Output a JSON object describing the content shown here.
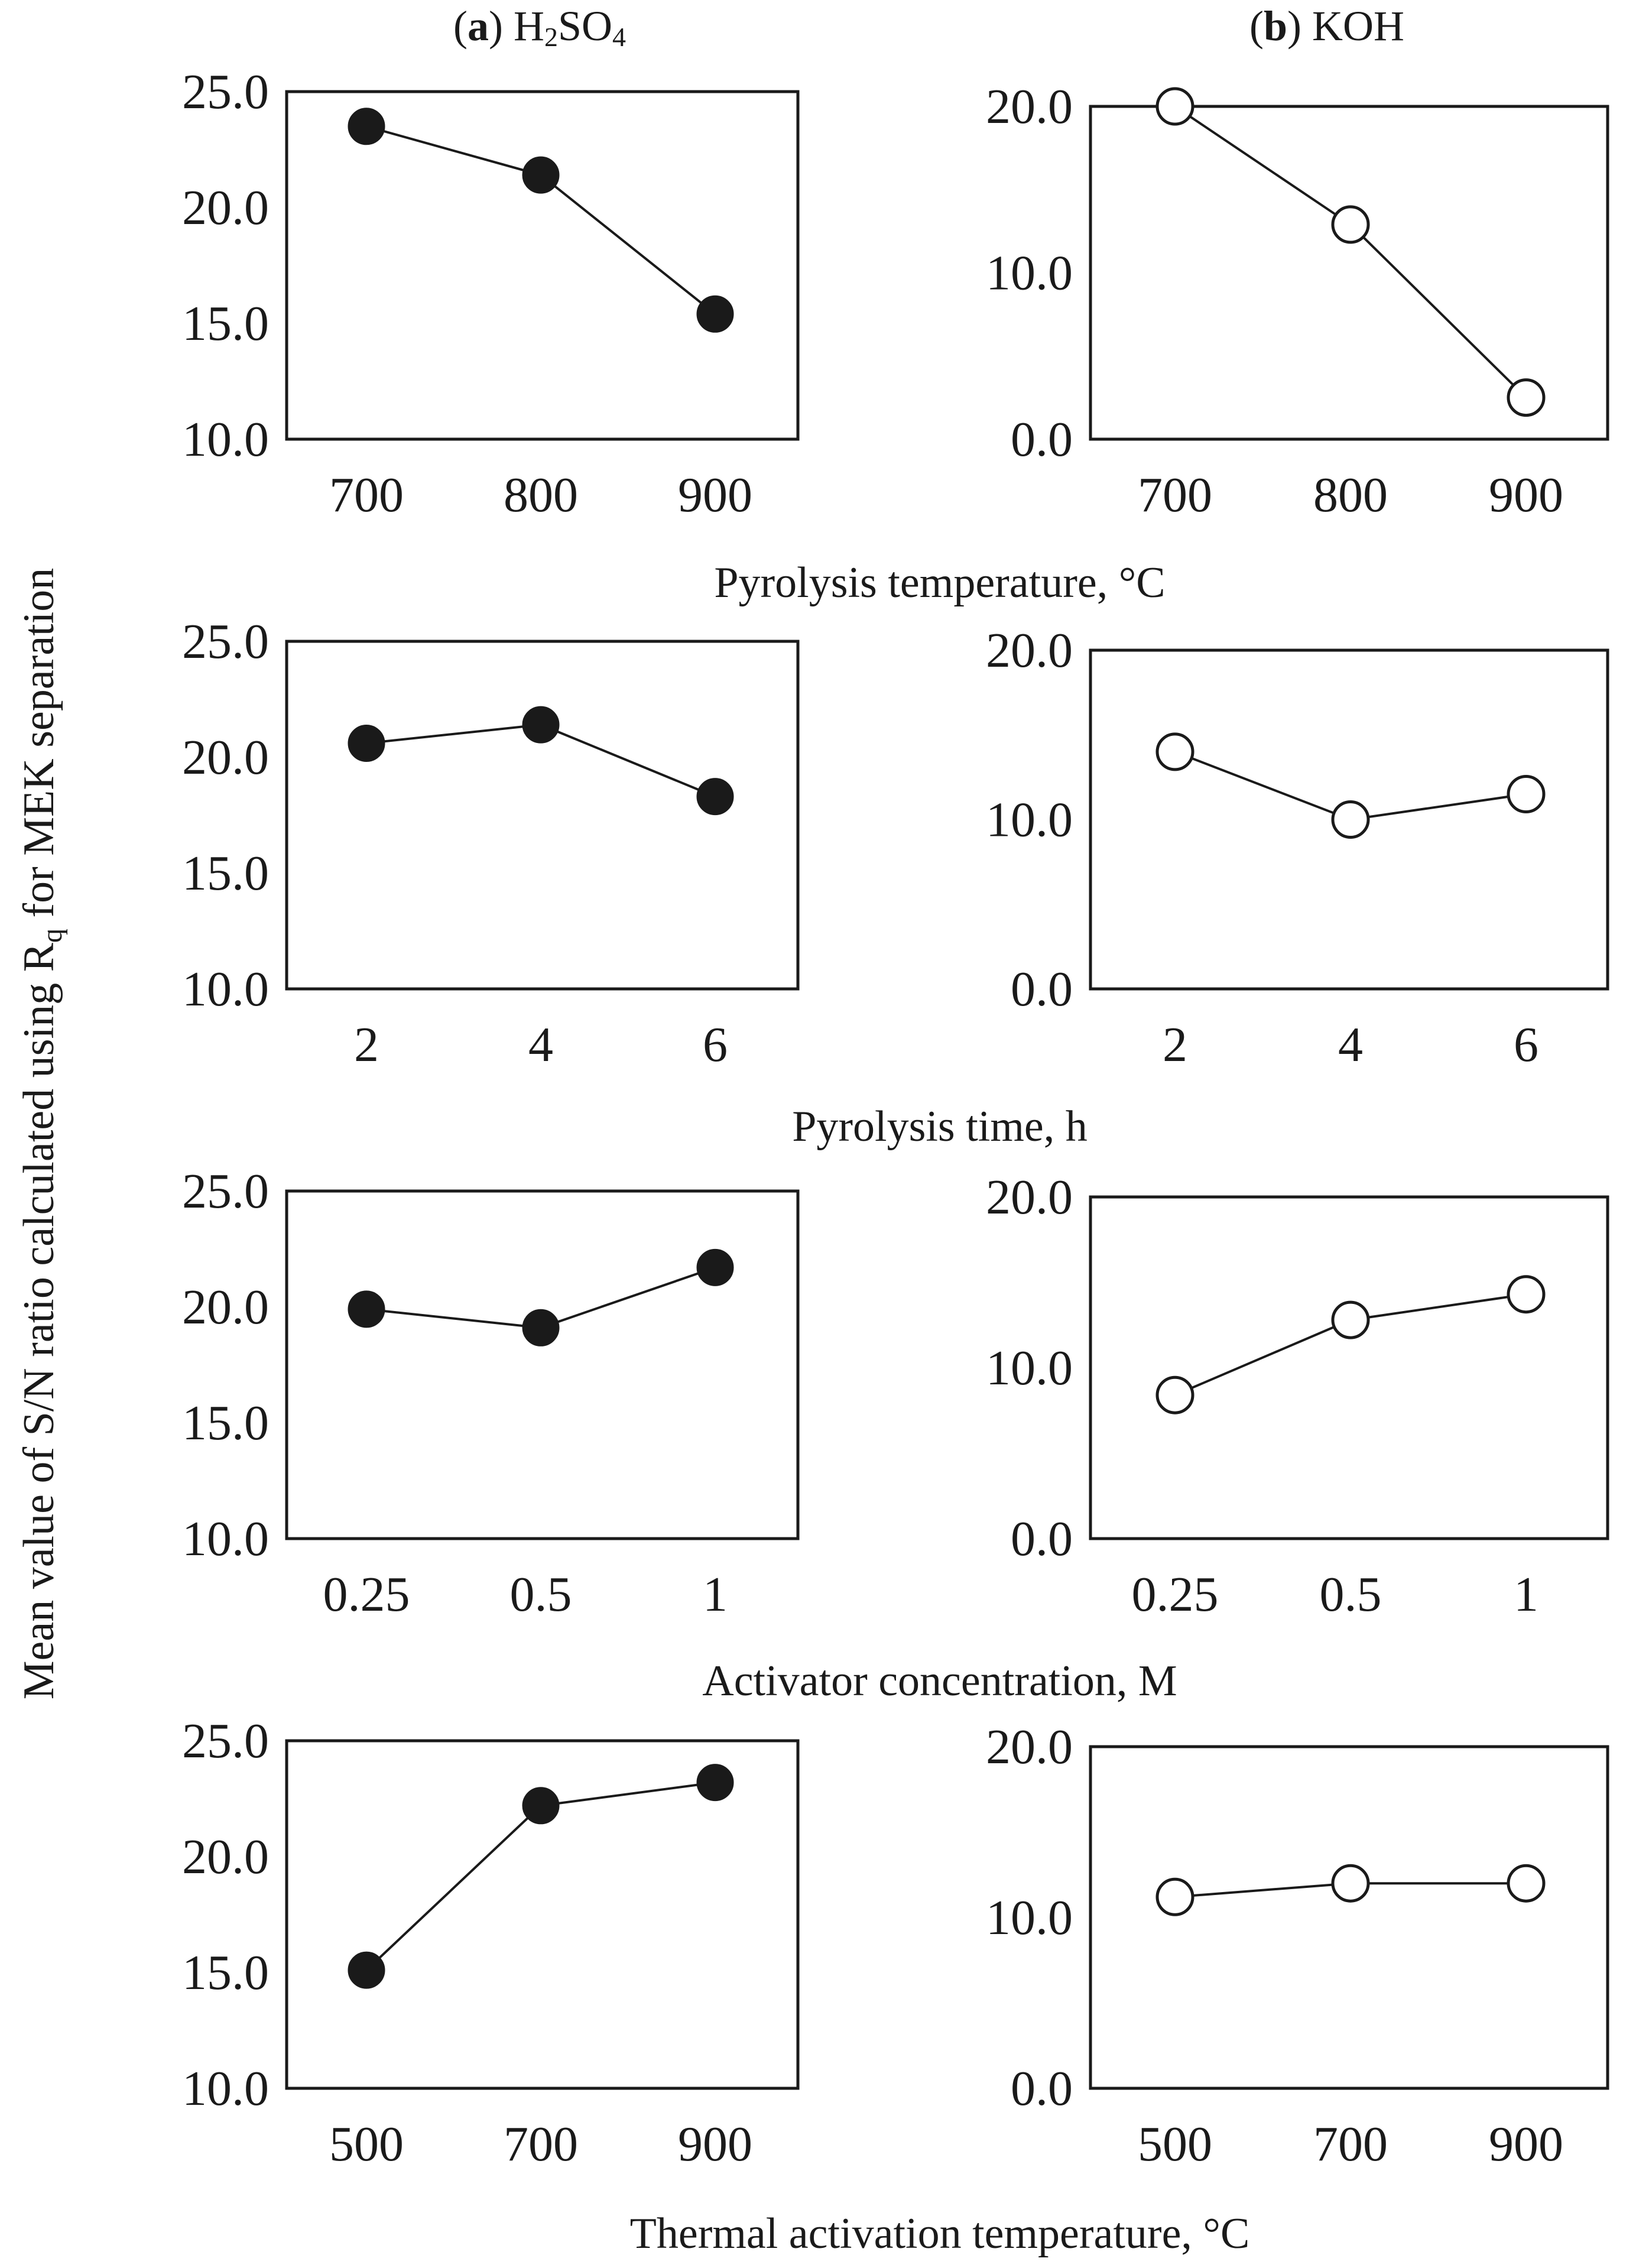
{
  "headings": {
    "left_tag": "a",
    "left_base": "H",
    "left_sub1": "2",
    "left_mid": "SO",
    "left_sub2": "4",
    "right_tag": "b",
    "right_name": "KOH"
  },
  "ylabel": {
    "prefix": "Mean value of S/N ratio calculated using R",
    "subscript": "q",
    "suffix": " for MEK separation"
  },
  "colors": {
    "line": "#1a1a1a",
    "filled_marker": "#1a1a1a",
    "open_marker_fill": "#ffffff"
  },
  "chart_data": [
    {
      "id": "a-pyrolysis-temperature",
      "type": "line",
      "column": "(a) H2SO4",
      "categories": [
        "700",
        "800",
        "900"
      ],
      "values": [
        23.5,
        21.4,
        15.4
      ],
      "ylim": [
        10,
        25
      ],
      "yticks": [
        "10.0",
        "15.0",
        "20.0",
        "25.0"
      ],
      "marker": "filled"
    },
    {
      "id": "b-pyrolysis-temperature",
      "type": "line",
      "column": "(b) KOH",
      "categories": [
        "700",
        "800",
        "900"
      ],
      "values": [
        20.0,
        12.9,
        2.5
      ],
      "ylim": [
        0,
        20
      ],
      "yticks": [
        "0.0",
        "10.0",
        "20.0"
      ],
      "marker": "open"
    },
    {
      "id": "a-pyrolysis-time",
      "type": "line",
      "column": "(a) H2SO4",
      "categories": [
        "2",
        "4",
        "6"
      ],
      "values": [
        20.6,
        21.4,
        18.3
      ],
      "ylim": [
        10,
        25
      ],
      "yticks": [
        "10.0",
        "15.0",
        "20.0",
        "25.0"
      ],
      "marker": "filled"
    },
    {
      "id": "b-pyrolysis-time",
      "type": "line",
      "column": "(b) KOH",
      "categories": [
        "2",
        "4",
        "6"
      ],
      "values": [
        14.0,
        10.0,
        11.5
      ],
      "ylim": [
        0,
        20
      ],
      "yticks": [
        "0.0",
        "10.0",
        "20.0"
      ],
      "marker": "open"
    },
    {
      "id": "a-activator-concentration",
      "type": "line",
      "column": "(a) H2SO4",
      "categories": [
        "0.25",
        "0.5",
        "1"
      ],
      "values": [
        19.9,
        19.1,
        21.7
      ],
      "ylim": [
        10,
        25
      ],
      "yticks": [
        "10.0",
        "15.0",
        "20.0",
        "25.0"
      ],
      "marker": "filled"
    },
    {
      "id": "b-activator-concentration",
      "type": "line",
      "column": "(b) KOH",
      "categories": [
        "0.25",
        "0.5",
        "1"
      ],
      "values": [
        8.4,
        12.8,
        14.3
      ],
      "ylim": [
        0,
        20
      ],
      "yticks": [
        "0.0",
        "10.0",
        "20.0"
      ],
      "marker": "open"
    },
    {
      "id": "a-thermal-activation-temperature",
      "type": "line",
      "column": "(a) H2SO4",
      "categories": [
        "500",
        "700",
        "900"
      ],
      "values": [
        15.1,
        22.2,
        23.2
      ],
      "ylim": [
        10,
        25
      ],
      "yticks": [
        "10.0",
        "15.0",
        "20.0",
        "25.0"
      ],
      "marker": "filled"
    },
    {
      "id": "b-thermal-activation-temperature",
      "type": "line",
      "column": "(b) KOH",
      "categories": [
        "500",
        "700",
        "900"
      ],
      "values": [
        11.2,
        12.0,
        12.0
      ],
      "ylim": [
        0,
        20
      ],
      "yticks": [
        "0.0",
        "10.0",
        "20.0"
      ],
      "marker": "open"
    }
  ],
  "row_xlabels": [
    "Pyrolysis temperature, °C",
    "Pyrolysis time, h",
    "Activator concentration, M",
    "Thermal activation temperature, °C"
  ]
}
